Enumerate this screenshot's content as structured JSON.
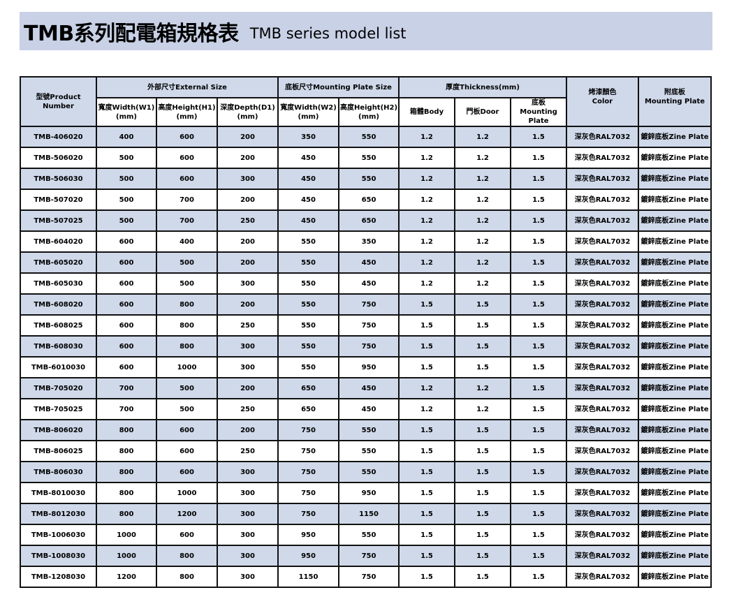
{
  "title": {
    "zh": "TMB系列配電箱規格表",
    "en": "TMB series model list"
  },
  "header": {
    "product_number": "型號Product Number",
    "external_size": "外部尺寸External Size",
    "mounting_plate_size": "底板尺寸Mounting Plate Size",
    "thickness": "厚度Thickness(mm)",
    "color_zh": "烤漆顏色",
    "color_en": "Color",
    "plate_zh": "附底板",
    "plate_en": "Mounting Plate",
    "width1": "寬度Width(W1)",
    "height1": "高度Height(H1)",
    "depth1": "深度Depth(D1)",
    "width2": "寬度Width(W2)",
    "height2": "高度Height(H2)",
    "mm": "(mm)",
    "body": "箱體Body",
    "door": "門板Door",
    "mp_zh": "底板",
    "mp_en": "Mounting Plate"
  },
  "rows": [
    [
      "TMB-406020",
      "400",
      "600",
      "200",
      "350",
      "550",
      "1.2",
      "1.2",
      "1.5",
      "深灰色RAL7032",
      "鍍鋅底板Zine Plate"
    ],
    [
      "TMB-506020",
      "500",
      "600",
      "200",
      "450",
      "550",
      "1.2",
      "1.2",
      "1.5",
      "深灰色RAL7032",
      "鍍鋅底板Zine Plate"
    ],
    [
      "TMB-506030",
      "500",
      "600",
      "300",
      "450",
      "550",
      "1.2",
      "1.2",
      "1.5",
      "深灰色RAL7032",
      "鍍鋅底板Zine Plate"
    ],
    [
      "TMB-507020",
      "500",
      "700",
      "200",
      "450",
      "650",
      "1.2",
      "1.2",
      "1.5",
      "深灰色RAL7032",
      "鍍鋅底板Zine Plate"
    ],
    [
      "TMB-507025",
      "500",
      "700",
      "250",
      "450",
      "650",
      "1.2",
      "1.2",
      "1.5",
      "深灰色RAL7032",
      "鍍鋅底板Zine Plate"
    ],
    [
      "TMB-604020",
      "600",
      "400",
      "200",
      "550",
      "350",
      "1.2",
      "1.2",
      "1.5",
      "深灰色RAL7032",
      "鍍鋅底板Zine Plate"
    ],
    [
      "TMB-605020",
      "600",
      "500",
      "200",
      "550",
      "450",
      "1.2",
      "1.2",
      "1.5",
      "深灰色RAL7032",
      "鍍鋅底板Zine Plate"
    ],
    [
      "TMB-605030",
      "600",
      "500",
      "300",
      "550",
      "450",
      "1.2",
      "1.2",
      "1.5",
      "深灰色RAL7032",
      "鍍鋅底板Zine Plate"
    ],
    [
      "TMB-608020",
      "600",
      "800",
      "200",
      "550",
      "750",
      "1.5",
      "1.5",
      "1.5",
      "深灰色RAL7032",
      "鍍鋅底板Zine Plate"
    ],
    [
      "TMB-608025",
      "600",
      "800",
      "250",
      "550",
      "750",
      "1.5",
      "1.5",
      "1.5",
      "深灰色RAL7032",
      "鍍鋅底板Zine Plate"
    ],
    [
      "TMB-608030",
      "600",
      "800",
      "300",
      "550",
      "750",
      "1.5",
      "1.5",
      "1.5",
      "深灰色RAL7032",
      "鍍鋅底板Zine Plate"
    ],
    [
      "TMB-6010030",
      "600",
      "1000",
      "300",
      "550",
      "950",
      "1.5",
      "1.5",
      "1.5",
      "深灰色RAL7032",
      "鍍鋅底板Zine Plate"
    ],
    [
      "TMB-705020",
      "700",
      "500",
      "200",
      "650",
      "450",
      "1.2",
      "1.2",
      "1.5",
      "深灰色RAL7032",
      "鍍鋅底板Zine Plate"
    ],
    [
      "TMB-705025",
      "700",
      "500",
      "250",
      "650",
      "450",
      "1.2",
      "1.2",
      "1.5",
      "深灰色RAL7032",
      "鍍鋅底板Zine Plate"
    ],
    [
      "TMB-806020",
      "800",
      "600",
      "200",
      "750",
      "550",
      "1.5",
      "1.5",
      "1.5",
      "深灰色RAL7032",
      "鍍鋅底板Zine Plate"
    ],
    [
      "TMB-806025",
      "800",
      "600",
      "250",
      "750",
      "550",
      "1.5",
      "1.5",
      "1.5",
      "深灰色RAL7032",
      "鍍鋅底板Zine Plate"
    ],
    [
      "TMB-806030",
      "800",
      "600",
      "300",
      "750",
      "550",
      "1.5",
      "1.5",
      "1.5",
      "深灰色RAL7032",
      "鍍鋅底板Zine Plate"
    ],
    [
      "TMB-8010030",
      "800",
      "1000",
      "300",
      "750",
      "950",
      "1.5",
      "1.5",
      "1.5",
      "深灰色RAL7032",
      "鍍鋅底板Zine Plate"
    ],
    [
      "TMB-8012030",
      "800",
      "1200",
      "300",
      "750",
      "1150",
      "1.5",
      "1.5",
      "1.5",
      "深灰色RAL7032",
      "鍍鋅底板Zine Plate"
    ],
    [
      "TMB-1006030",
      "1000",
      "600",
      "300",
      "950",
      "550",
      "1.5",
      "1.5",
      "1.5",
      "深灰色RAL7032",
      "鍍鋅底板Zine Plate"
    ],
    [
      "TMB-1008030",
      "1000",
      "800",
      "300",
      "950",
      "750",
      "1.5",
      "1.5",
      "1.5",
      "深灰色RAL7032",
      "鍍鋅底板Zine Plate"
    ],
    [
      "TMB-1208030",
      "1200",
      "800",
      "300",
      "1150",
      "750",
      "1.5",
      "1.5",
      "1.5",
      "深灰色RAL7032",
      "鍍鋅底板Zine Plate"
    ]
  ],
  "colors": {
    "banner": "#c8d1e5",
    "row_highlight": "#cfd9ea"
  }
}
